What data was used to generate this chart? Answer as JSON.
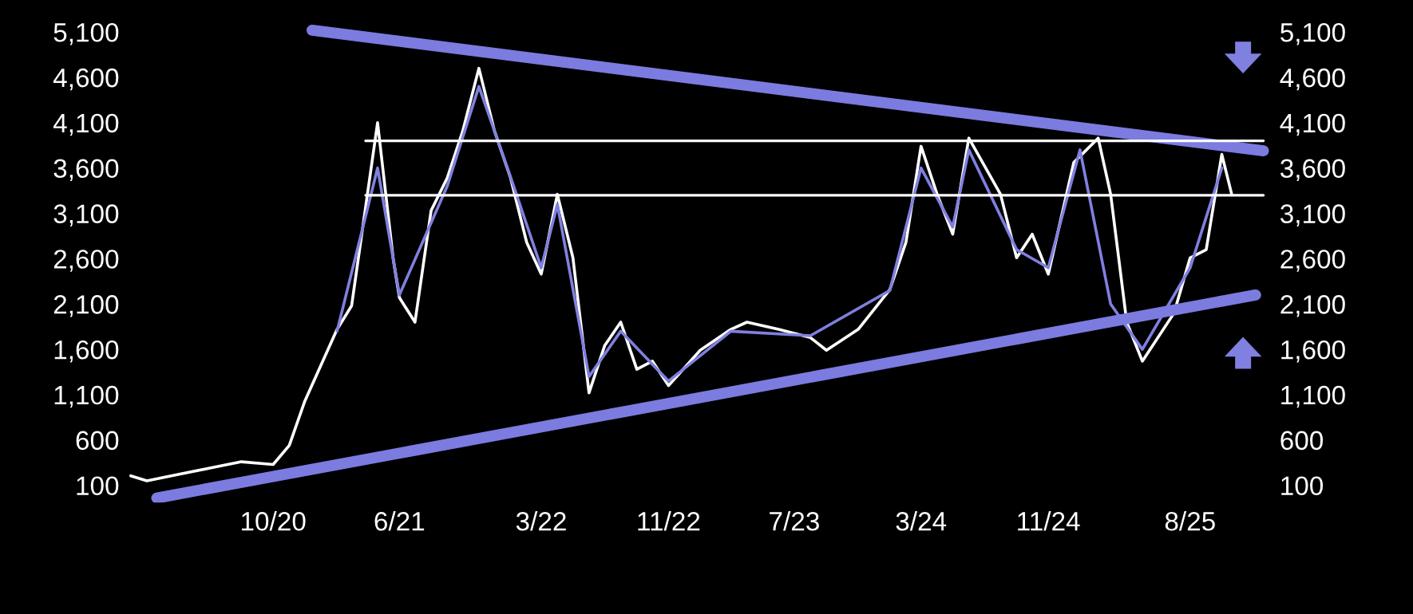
{
  "chart_data": {
    "type": "line",
    "xlim": [
      "2019-12-25",
      "2026-01-05"
    ],
    "ylim": [
      -100,
      5250
    ],
    "y2lim": [
      -100,
      5250
    ],
    "xticks": [
      {
        "value": "2020-10",
        "label": "10/20"
      },
      {
        "value": "2021-06",
        "label": "6/21"
      },
      {
        "value": "2022-03",
        "label": "3/22"
      },
      {
        "value": "2022-11",
        "label": "11/22"
      },
      {
        "value": "2023-07",
        "label": "7/23"
      },
      {
        "value": "2024-03",
        "label": "3/24"
      },
      {
        "value": "2024-11",
        "label": "11/24"
      },
      {
        "value": "2025-08",
        "label": "8/25"
      }
    ],
    "yticks": [
      {
        "value": 100,
        "label": "100"
      },
      {
        "value": 600,
        "label": "600"
      },
      {
        "value": 1100,
        "label": "1,100"
      },
      {
        "value": 1600,
        "label": "1,600"
      },
      {
        "value": 2100,
        "label": "2,100"
      },
      {
        "value": 2600,
        "label": "2,600"
      },
      {
        "value": 3100,
        "label": "3,100"
      },
      {
        "value": 3600,
        "label": "3,600"
      },
      {
        "value": 4100,
        "label": "4,100"
      },
      {
        "value": 4600,
        "label": "4,600"
      },
      {
        "value": 5100,
        "label": "5,100"
      }
    ],
    "y2ticks": [
      {
        "value": 100,
        "label": "100"
      },
      {
        "value": 600,
        "label": "600"
      },
      {
        "value": 1100,
        "label": "1,100"
      },
      {
        "value": 1600,
        "label": "1,600"
      },
      {
        "value": 2100,
        "label": "2,100"
      },
      {
        "value": 2600,
        "label": "2,600"
      },
      {
        "value": 3100,
        "label": "3,100"
      },
      {
        "value": 3600,
        "label": "3,600"
      },
      {
        "value": 4100,
        "label": "4,100"
      },
      {
        "value": 4600,
        "label": "4,600"
      },
      {
        "value": 5100,
        "label": "5,100"
      }
    ],
    "grid": false,
    "legend": false,
    "series": [
      {
        "color": "#ffffff",
        "x": [
          "2020-01",
          "2020-02",
          "2020-04",
          "2020-06",
          "2020-08",
          "2020-10",
          "2020-11",
          "2020-12",
          "2021-02",
          "2021-03",
          "2021-04-20",
          "2021-05-20",
          "2021-06",
          "2021-07",
          "2021-08",
          "2021-09",
          "2021-10",
          "2021-11",
          "2021-12",
          "2022-01",
          "2022-02",
          "2022-03",
          "2022-04",
          "2022-05",
          "2022-06",
          "2022-07",
          "2022-08",
          "2022-09",
          "2022-10",
          "2022-11",
          "2023-01",
          "2023-03",
          "2023-04",
          "2023-06",
          "2023-08",
          "2023-09",
          "2023-11",
          "2024-01",
          "2024-02",
          "2024-03",
          "2024-04",
          "2024-05",
          "2024-06",
          "2024-08",
          "2024-09",
          "2024-10",
          "2024-11",
          "2024-12-20",
          "2025-02-05",
          "2025-03",
          "2025-04",
          "2025-05",
          "2025-07",
          "2025-08",
          "2025-09",
          "2025-10",
          "2025-10-20"
        ],
        "values": [
          205,
          150,
          220,
          290,
          360,
          330,
          540,
          1030,
          1820,
          2080,
          4100,
          2600,
          2170,
          1900,
          3130,
          3490,
          4010,
          4700,
          4010,
          3490,
          2780,
          2430,
          3310,
          2610,
          1120,
          1640,
          1900,
          1380,
          1470,
          1200,
          1590,
          1820,
          1900,
          1820,
          1730,
          1590,
          1820,
          2260,
          2780,
          3840,
          3310,
          2870,
          3930,
          3310,
          2610,
          2870,
          2430,
          3660,
          3930,
          3310,
          1900,
          1470,
          2000,
          2610,
          2700,
          3750,
          3310
        ]
      },
      {
        "color": "#8080e0",
        "x": [
          "2021-02",
          "2021-04-20",
          "2021-06",
          "2021-09",
          "2021-11",
          "2022-01",
          "2022-03",
          "2022-04",
          "2022-06",
          "2022-08",
          "2022-11",
          "2023-03",
          "2023-08",
          "2024-01",
          "2024-03",
          "2024-05",
          "2024-06",
          "2024-09",
          "2024-11",
          "2025-01",
          "2025-03",
          "2025-05",
          "2025-08",
          "2025-10"
        ],
        "values": [
          1800,
          3600,
          2200,
          3400,
          4500,
          3500,
          2500,
          3200,
          1300,
          1800,
          1250,
          1800,
          1750,
          2250,
          3600,
          2950,
          3800,
          2700,
          2500,
          3800,
          2100,
          1600,
          2500,
          3600
        ]
      },
      {
        "color": "#7b7be0",
        "x": [
          "2020-12-15",
          "2025-12-20"
        ],
        "values": [
          5120,
          3790
        ]
      },
      {
        "color": "#7b7be0",
        "x": [
          "2020-02-20",
          "2025-12-05"
        ],
        "values": [
          -40,
          2200
        ]
      },
      {
        "color": "#ffffff",
        "x": [
          "2021-03-28",
          "2025-12-20"
        ],
        "values": [
          3900,
          3900
        ]
      },
      {
        "color": "#ffffff",
        "x": [
          "2021-03-28",
          "2025-12-20"
        ],
        "values": [
          3300,
          3300
        ]
      }
    ]
  }
}
